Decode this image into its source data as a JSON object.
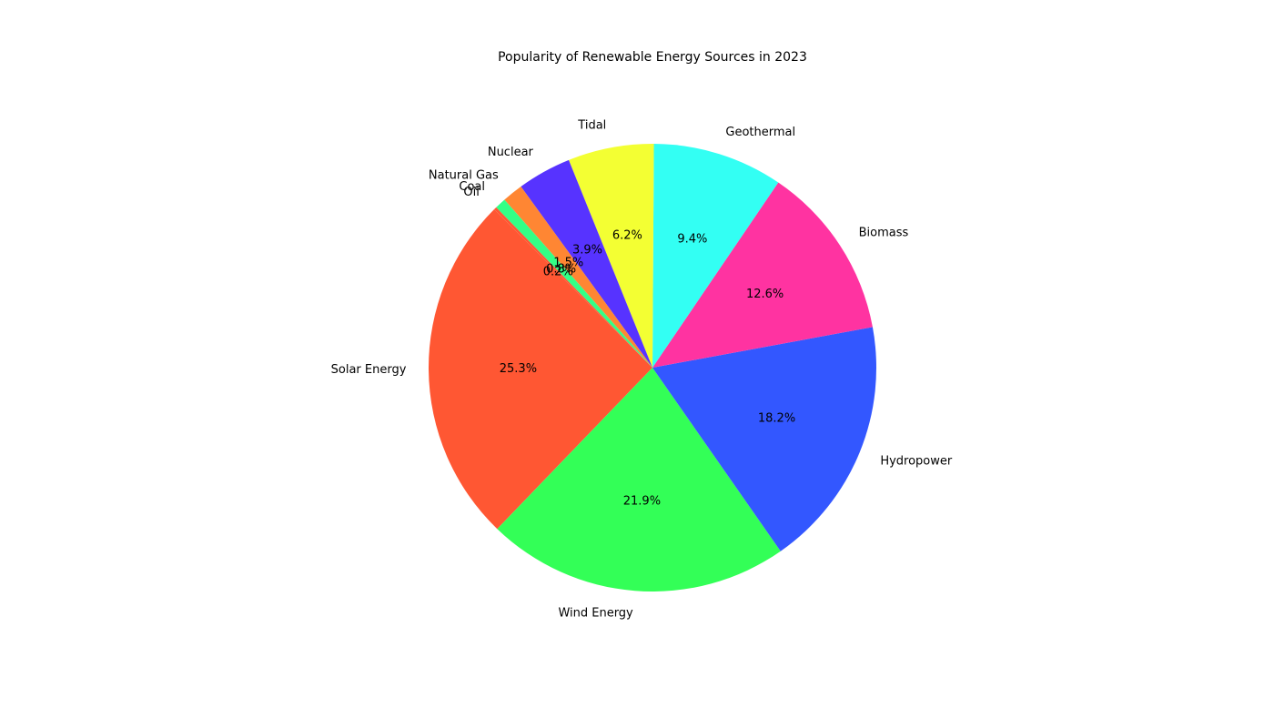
{
  "chart_data": {
    "type": "pie",
    "title": "Popularity of Renewable Energy Sources in 2023",
    "start_angle_deg": 135,
    "direction": "counterclockwise",
    "legend": "none",
    "slices": [
      {
        "label": "Solar Energy",
        "value": 25.3,
        "pct_label": "25.3%",
        "color": "#FF5733"
      },
      {
        "label": "Wind Energy",
        "value": 21.9,
        "pct_label": "21.9%",
        "color": "#33FF57"
      },
      {
        "label": "Hydropower",
        "value": 18.2,
        "pct_label": "18.2%",
        "color": "#3357FF"
      },
      {
        "label": "Biomass",
        "value": 12.6,
        "pct_label": "12.6%",
        "color": "#FF33A1"
      },
      {
        "label": "Geothermal",
        "value": 9.4,
        "pct_label": "9.4%",
        "color": "#33FFF3"
      },
      {
        "label": "Tidal",
        "value": 6.2,
        "pct_label": "6.2%",
        "color": "#F3FF33"
      },
      {
        "label": "Nuclear",
        "value": 3.9,
        "pct_label": "3.9%",
        "color": "#5733FF"
      },
      {
        "label": "Natural Gas",
        "value": 1.5,
        "pct_label": "1.5%",
        "color": "#FF8633"
      },
      {
        "label": "Coal",
        "value": 0.8,
        "pct_label": "0.8%",
        "color": "#33FF86"
      },
      {
        "label": "Oil",
        "value": 0.2,
        "pct_label": "0.2%",
        "color": "#FF5733"
      }
    ]
  }
}
